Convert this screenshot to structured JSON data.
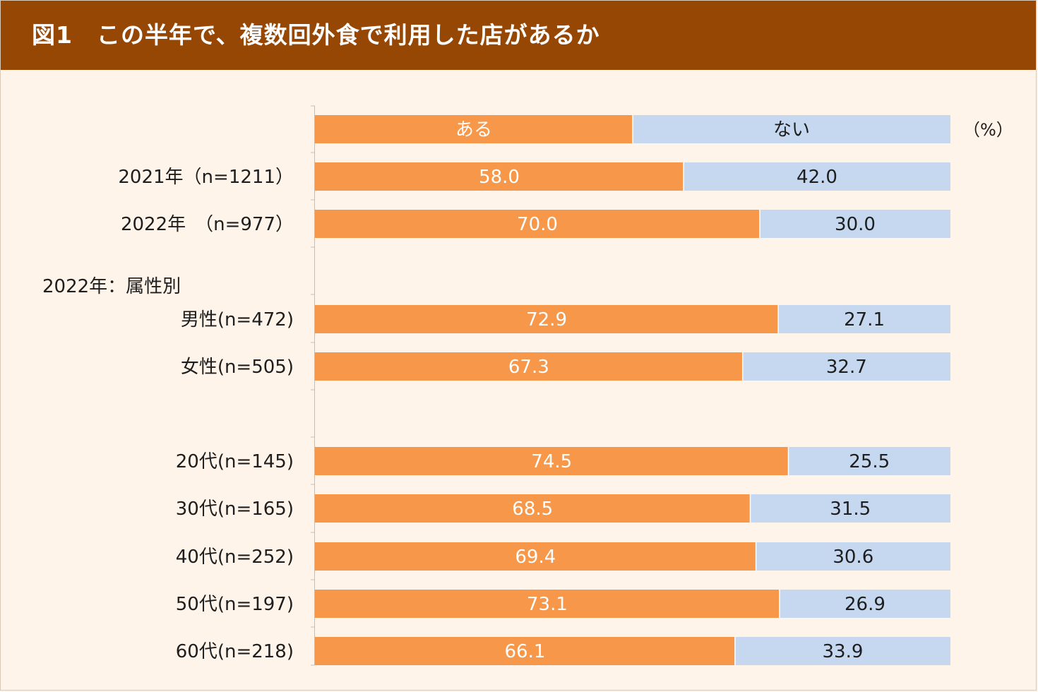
{
  "title": "図1　この半年で、複数回外食で利用した店があるか",
  "colors": {
    "header_bg": "#964704",
    "page_bg": "#fef4ea",
    "aru": "#f6974a",
    "nai": "#c6d8f0",
    "axis": "#bfbfbf"
  },
  "chart_data": {
    "type": "bar",
    "orientation": "horizontal",
    "stacked": "percent",
    "unit": "（%）",
    "group_label": "2022年：属性別",
    "legend": [
      "ある",
      "ない"
    ],
    "categories": [
      "2021年（n=1211）",
      "2022年　（n=977）",
      "男性(n=472)",
      "女性(n=505)",
      "20代(n=145)",
      "30代(n=165)",
      "40代(n=252)",
      "50代(n=197)",
      "60代(n=218)"
    ],
    "series": [
      {
        "name": "ある",
        "values": [
          58.0,
          70.0,
          72.9,
          67.3,
          74.5,
          68.5,
          69.4,
          73.1,
          66.1
        ]
      },
      {
        "name": "ない",
        "values": [
          42.0,
          30.0,
          27.1,
          32.7,
          25.5,
          31.5,
          30.6,
          26.9,
          33.9
        ]
      }
    ],
    "xlim": [
      0,
      100
    ],
    "grid": false
  }
}
